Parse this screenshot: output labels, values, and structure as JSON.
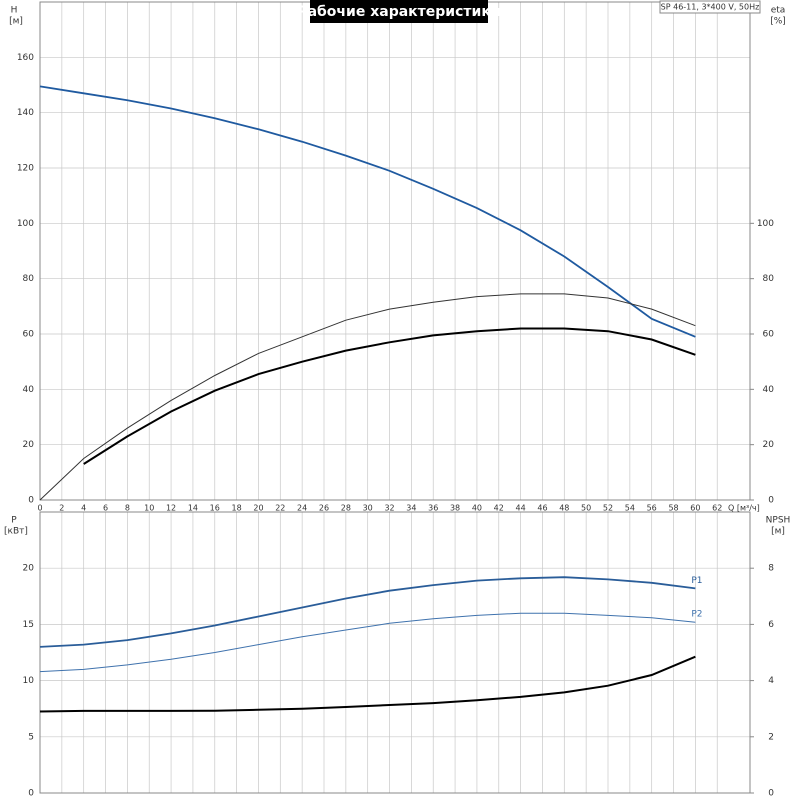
{
  "chart_data": [
    {
      "type": "line",
      "title": "Рабочие характеристики",
      "subtitle": "SP 46-11, 3*400 V, 50Hz",
      "ylabel": "H",
      "yunit": "[м]",
      "y2label": "eta",
      "y2unit": "[%]",
      "xlabel": "Q [м³/ч]",
      "x": [
        0,
        4,
        8,
        12,
        16,
        20,
        24,
        28,
        32,
        36,
        40,
        44,
        48,
        52,
        56,
        60
      ],
      "xlim": [
        0,
        65
      ],
      "xticks": [
        0,
        2,
        4,
        6,
        8,
        10,
        12,
        14,
        16,
        18,
        20,
        22,
        24,
        26,
        28,
        30,
        32,
        34,
        36,
        38,
        40,
        42,
        44,
        46,
        48,
        50,
        52,
        54,
        56,
        58,
        60,
        62
      ],
      "ylim": [
        0,
        180
      ],
      "yticks": [
        0,
        20,
        40,
        60,
        80,
        100,
        120,
        140,
        160
      ],
      "y2lim": [
        0,
        180
      ],
      "y2ticks": [
        0,
        20,
        40,
        60,
        80,
        100
      ],
      "grid": true,
      "series": [
        {
          "color": "#1f5aa0",
          "values": [
            149.5,
            147,
            144.5,
            141.5,
            138,
            134,
            129.5,
            124.5,
            119,
            112.5,
            105.5,
            97.5,
            88,
            77,
            65.5,
            59
          ]
        },
        {
          "color": "#333333",
          "axis": "y2",
          "values": [
            0,
            15,
            26,
            36,
            45,
            53,
            59,
            65,
            69,
            71.5,
            73.5,
            74.5,
            74.5,
            73,
            69,
            63
          ]
        },
        {
          "color": "#000000",
          "axis": "y2",
          "values": [
            null,
            13,
            23,
            32,
            39.5,
            45.5,
            50,
            54,
            57,
            59.5,
            61,
            62,
            62,
            61,
            58,
            52.5
          ]
        }
      ]
    },
    {
      "type": "line",
      "ylabel": "P",
      "yunit": "[кВт]",
      "y2label": "NPSH",
      "y2unit": "[м]",
      "x": [
        0,
        4,
        8,
        12,
        16,
        20,
        24,
        28,
        32,
        36,
        40,
        44,
        48,
        52,
        56,
        60
      ],
      "xlim": [
        0,
        65
      ],
      "xticks": [
        0,
        2,
        4,
        6,
        8,
        10,
        12,
        14,
        16,
        18,
        20,
        22,
        24,
        26,
        28,
        30,
        32,
        34,
        36,
        38,
        40,
        42,
        44,
        46,
        48,
        50,
        52,
        54,
        56,
        58,
        60,
        62
      ],
      "ylim": [
        0,
        25
      ],
      "yticks": [
        0,
        5,
        10,
        15,
        20
      ],
      "y2lim": [
        0,
        10
      ],
      "y2ticks": [
        0,
        2,
        4,
        6,
        8
      ],
      "grid": true,
      "series": [
        {
          "name": "P1",
          "color": "#2a5d99",
          "values": [
            13,
            13.2,
            13.6,
            14.2,
            14.9,
            15.7,
            16.5,
            17.3,
            18,
            18.5,
            18.9,
            19.1,
            19.2,
            19,
            18.7,
            18.2
          ]
        },
        {
          "name": "P2",
          "color": "#3f72ad",
          "values": [
            10.8,
            11,
            11.4,
            11.9,
            12.5,
            13.2,
            13.9,
            14.5,
            15.1,
            15.5,
            15.8,
            16,
            16,
            15.8,
            15.6,
            15.2
          ]
        },
        {
          "color": "#000000",
          "axis": "y2",
          "values": [
            2.9,
            2.92,
            2.92,
            2.92,
            2.93,
            2.96,
            3,
            3.06,
            3.13,
            3.2,
            3.3,
            3.42,
            3.58,
            3.82,
            4.2,
            4.85
          ]
        }
      ]
    }
  ]
}
